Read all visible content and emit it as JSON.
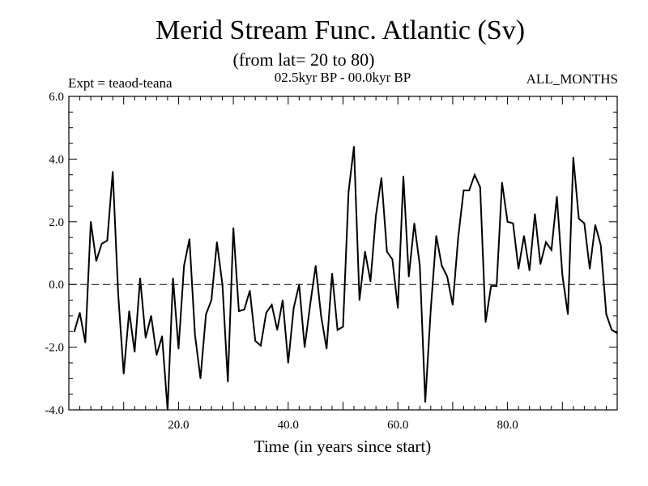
{
  "chart_data": {
    "type": "line",
    "title": "Merid Stream Func. Atlantic (Sv)",
    "subtitle": "(from lat= 20 to 80)",
    "annotation_left": "Expt = teaod-teana",
    "annotation_center": "02.5kyr BP - 00.0kyr BP",
    "annotation_right": "ALL_MONTHS",
    "xlabel": "Time (in years since start)",
    "ylabel": "",
    "xlim": [
      0,
      100
    ],
    "ylim": [
      -4.0,
      6.0
    ],
    "x_ticks": [
      20,
      40,
      60,
      80
    ],
    "x_tick_labels": [
      "20.0",
      "40.0",
      "60.0",
      "80.0"
    ],
    "y_ticks": [
      -4.0,
      -2.0,
      0.0,
      2.0,
      4.0,
      6.0
    ],
    "y_tick_labels": [
      "-4.0",
      "-2.0",
      "0.0",
      "2.0",
      "4.0",
      "6.0"
    ],
    "reference_line": 0.0,
    "series": [
      {
        "name": "teaod-teana",
        "x": [
          1,
          2,
          3,
          4,
          5,
          6,
          7,
          8,
          9,
          10,
          11,
          12,
          13,
          14,
          15,
          16,
          17,
          18,
          19,
          20,
          21,
          22,
          23,
          24,
          25,
          26,
          27,
          28,
          29,
          30,
          31,
          32,
          33,
          34,
          35,
          36,
          37,
          38,
          39,
          40,
          41,
          42,
          43,
          44,
          45,
          46,
          47,
          48,
          49,
          50,
          51,
          52,
          53,
          54,
          55,
          56,
          57,
          58,
          59,
          60,
          61,
          62,
          63,
          64,
          65,
          66,
          67,
          68,
          69,
          70,
          71,
          72,
          73,
          74,
          75,
          76,
          77,
          78,
          79,
          80,
          81,
          82,
          83,
          84,
          85,
          86,
          87,
          88,
          89,
          90,
          91,
          92,
          93,
          94,
          95,
          96,
          97,
          98,
          99,
          100
        ],
        "values": [
          -1.5,
          -0.9,
          -1.85,
          2.0,
          0.75,
          1.3,
          1.4,
          3.6,
          -0.3,
          -2.85,
          -0.85,
          -2.15,
          0.2,
          -1.7,
          -1.0,
          -2.25,
          -1.65,
          -4.0,
          0.2,
          -2.05,
          0.6,
          1.45,
          -1.6,
          -3.0,
          -0.95,
          -0.5,
          1.35,
          0.0,
          -3.1,
          1.8,
          -0.85,
          -0.8,
          -0.2,
          -1.8,
          -1.95,
          -0.9,
          -0.65,
          -1.45,
          -0.5,
          -2.5,
          -0.75,
          0.0,
          -2.0,
          -0.65,
          0.6,
          -1.0,
          -2.05,
          0.35,
          -1.45,
          -1.35,
          2.95,
          4.4,
          -0.5,
          1.05,
          0.1,
          2.2,
          3.4,
          1.05,
          0.8,
          -0.75,
          3.45,
          0.25,
          1.95,
          0.6,
          -3.75,
          -0.8,
          1.55,
          0.6,
          0.25,
          -0.65,
          1.5,
          3.0,
          3.0,
          3.5,
          3.1,
          -1.2,
          -0.05,
          -0.05,
          3.25,
          2.0,
          1.95,
          0.5,
          1.55,
          0.45,
          2.25,
          0.65,
          1.35,
          1.1,
          2.8,
          0.3,
          -0.95,
          4.05,
          2.1,
          1.95,
          0.5,
          1.9,
          1.25,
          -0.95,
          -1.45,
          -1.55
        ]
      }
    ]
  }
}
